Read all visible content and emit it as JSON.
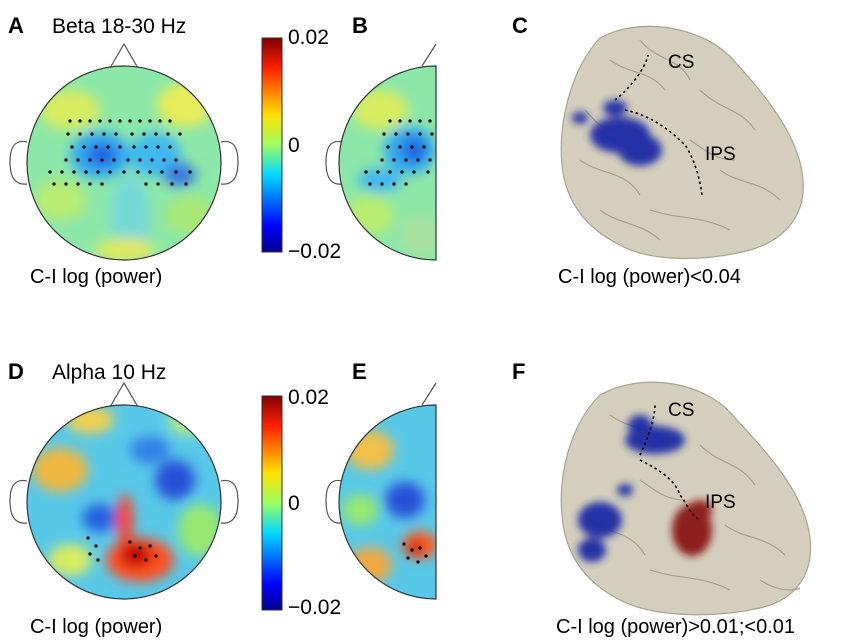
{
  "figure": {
    "top": {
      "label_a": "A",
      "label_b": "B",
      "label_c": "C",
      "title": "Beta 18-30 Hz",
      "colorbar_ticks": [
        "0.02",
        "0",
        "−0.02"
      ],
      "topo_caption": "C-I log (power)",
      "brain_caption": "C-I log (power)<0.04",
      "sulcus_cs": "CS",
      "sulcus_ips": "IPS"
    },
    "bottom": {
      "label_d": "D",
      "label_e": "E",
      "label_f": "F",
      "title": "Alpha 10 Hz",
      "colorbar_ticks": [
        "0.02",
        "0",
        "−0.02"
      ],
      "topo_caption": "C-I log (power)",
      "brain_caption": "C-I log (power)>0.01;<0.01",
      "sulcus_cs": "CS",
      "sulcus_ips": "IPS"
    },
    "colors": {
      "cortex": "#d4cfbc",
      "negative": "#1a2aa6",
      "positive": "#8a1212",
      "colormap": [
        "#00008f",
        "#0050ff",
        "#00d8ff",
        "#9cff60",
        "#ffe000",
        "#ff3c00",
        "#800000"
      ]
    }
  }
}
